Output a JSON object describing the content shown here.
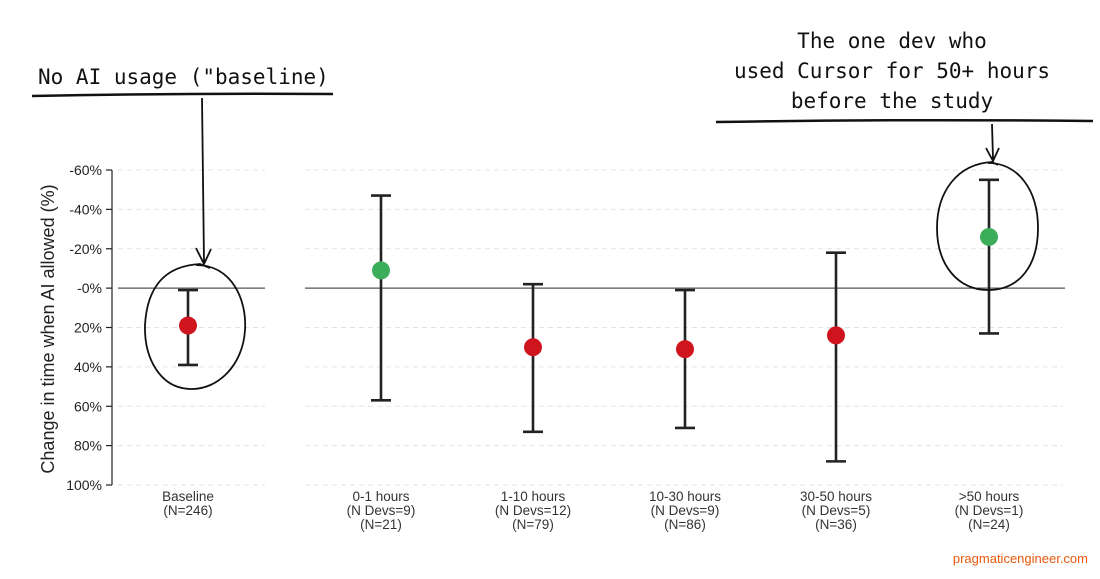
{
  "chart_data": {
    "type": "scatter",
    "subtype": "point-with-error-bars",
    "ylabel": "Change in time when AI allowed (%)",
    "y_axis_inverted": true,
    "ylim": [
      -60,
      100
    ],
    "yticks": [
      -60,
      -40,
      -20,
      0,
      20,
      40,
      60,
      80,
      100
    ],
    "ytick_labels": [
      "-60%",
      "-40%",
      "-20%",
      "-0%",
      "20%",
      "40%",
      "60%",
      "80%",
      "100%"
    ],
    "grid": "horizontal dashed",
    "reference_line": 0,
    "categories": [
      {
        "lines": [
          "Baseline",
          "(N=246)"
        ],
        "value": 19,
        "lower": 1,
        "upper": 39,
        "color": "#d0141e"
      },
      {
        "lines": [
          "0-1 hours",
          "(N Devs=9)",
          "(N=21)"
        ],
        "value": -9,
        "lower": -47,
        "upper": 57,
        "color": "#3cae5b"
      },
      {
        "lines": [
          "1-10 hours",
          "(N Devs=12)",
          "(N=79)"
        ],
        "value": 30,
        "lower": -2,
        "upper": 73,
        "color": "#d0141e"
      },
      {
        "lines": [
          "10-30 hours",
          "(N Devs=9)",
          "(N=86)"
        ],
        "value": 31,
        "lower": 1,
        "upper": 71,
        "color": "#d0141e"
      },
      {
        "lines": [
          "30-50 hours",
          "(N Devs=5)",
          "(N=36)"
        ],
        "value": 24,
        "lower": -18,
        "upper": 88,
        "color": "#d0141e"
      },
      {
        "lines": [
          ">50 hours",
          "(N Devs=1)",
          "(N=24)"
        ],
        "value": -26,
        "lower": -55,
        "upper": 23,
        "color": "#3cae5b"
      }
    ],
    "annotations": [
      {
        "lines": [
          "No AI usage (\"baseline)"
        ]
      },
      {
        "lines": [
          "The one dev who",
          "used Cursor for 50+ hours",
          "before the study"
        ]
      }
    ]
  },
  "watermark": "pragmaticengineer.com"
}
